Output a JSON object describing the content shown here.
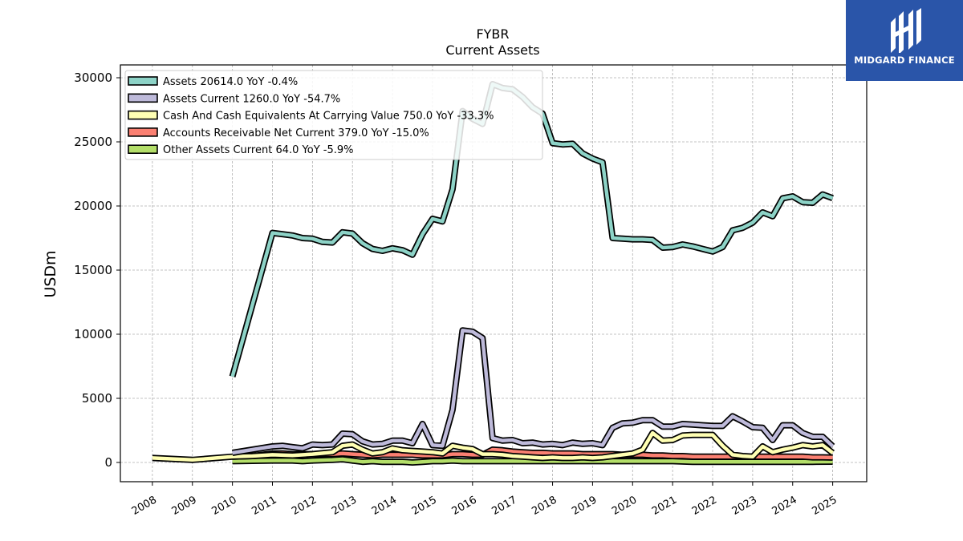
{
  "brand": {
    "name": "MIDGARD FINANCE",
    "icon": "midgard-logo-icon",
    "background": "#2a55a9"
  },
  "chart_data": {
    "type": "line",
    "title": "FYBR",
    "subtitle": "Current  Assets",
    "ylabel": "USDm",
    "xlabel": "",
    "ylim": [
      -1500,
      31000
    ],
    "xlim": [
      2007.2,
      2025.85
    ],
    "yticks": [
      0,
      5000,
      10000,
      15000,
      20000,
      25000,
      30000
    ],
    "xticks": [
      2008,
      2009,
      2010,
      2011,
      2012,
      2013,
      2014,
      2015,
      2016,
      2017,
      2018,
      2019,
      2020,
      2021,
      2022,
      2023,
      2024,
      2025
    ],
    "grid": true,
    "legend_position": "top-left",
    "series": [
      {
        "name": "Assets  20614.0 YoY -0.4%",
        "color": "#8dd3c7",
        "points": [
          [
            2010.0,
            6700
          ],
          [
            2011.0,
            17900
          ],
          [
            2011.25,
            17800
          ],
          [
            2011.5,
            17700
          ],
          [
            2011.75,
            17500
          ],
          [
            2012.0,
            17450
          ],
          [
            2012.25,
            17200
          ],
          [
            2012.5,
            17150
          ],
          [
            2012.75,
            17950
          ],
          [
            2013.0,
            17850
          ],
          [
            2013.25,
            17100
          ],
          [
            2013.5,
            16650
          ],
          [
            2013.75,
            16500
          ],
          [
            2014.0,
            16700
          ],
          [
            2014.25,
            16550
          ],
          [
            2014.5,
            16200
          ],
          [
            2014.75,
            17800
          ],
          [
            2015.0,
            19000
          ],
          [
            2015.25,
            18800
          ],
          [
            2015.5,
            21300
          ],
          [
            2015.75,
            27400
          ],
          [
            2016.0,
            26800
          ],
          [
            2016.25,
            26400
          ],
          [
            2016.5,
            29500
          ],
          [
            2016.75,
            29200
          ],
          [
            2017.0,
            29100
          ],
          [
            2017.25,
            28500
          ],
          [
            2017.5,
            27700
          ],
          [
            2017.75,
            27200
          ],
          [
            2018.0,
            24900
          ],
          [
            2018.25,
            24800
          ],
          [
            2018.5,
            24850
          ],
          [
            2018.75,
            24100
          ],
          [
            2019.0,
            23700
          ],
          [
            2019.25,
            23400
          ],
          [
            2019.5,
            17500
          ],
          [
            2019.75,
            17450
          ],
          [
            2020.0,
            17400
          ],
          [
            2020.25,
            17400
          ],
          [
            2020.5,
            17350
          ],
          [
            2020.75,
            16750
          ],
          [
            2021.0,
            16800
          ],
          [
            2021.25,
            17000
          ],
          [
            2021.5,
            16850
          ],
          [
            2021.75,
            16650
          ],
          [
            2022.0,
            16450
          ],
          [
            2022.25,
            16800
          ],
          [
            2022.5,
            18100
          ],
          [
            2022.75,
            18300
          ],
          [
            2023.0,
            18700
          ],
          [
            2023.25,
            19500
          ],
          [
            2023.5,
            19200
          ],
          [
            2023.75,
            20600
          ],
          [
            2024.0,
            20750
          ],
          [
            2024.25,
            20300
          ],
          [
            2024.5,
            20250
          ],
          [
            2024.75,
            20900
          ],
          [
            2025.0,
            20614
          ]
        ]
      },
      {
        "name": "Assets Current  1260.0 YoY -54.7%",
        "color": "#bebada",
        "points": [
          [
            2010.0,
            750
          ],
          [
            2010.5,
            1000
          ],
          [
            2011.0,
            1250
          ],
          [
            2011.25,
            1300
          ],
          [
            2011.5,
            1200
          ],
          [
            2011.75,
            1100
          ],
          [
            2012.0,
            1400
          ],
          [
            2012.25,
            1350
          ],
          [
            2012.5,
            1400
          ],
          [
            2012.75,
            2250
          ],
          [
            2013.0,
            2200
          ],
          [
            2013.25,
            1650
          ],
          [
            2013.5,
            1400
          ],
          [
            2013.75,
            1450
          ],
          [
            2014.0,
            1700
          ],
          [
            2014.25,
            1700
          ],
          [
            2014.5,
            1500
          ],
          [
            2014.75,
            3000
          ],
          [
            2015.0,
            1350
          ],
          [
            2015.25,
            1300
          ],
          [
            2015.5,
            4100
          ],
          [
            2015.75,
            10300
          ],
          [
            2016.0,
            10200
          ],
          [
            2016.25,
            9700
          ],
          [
            2016.5,
            1900
          ],
          [
            2016.75,
            1700
          ],
          [
            2017.0,
            1750
          ],
          [
            2017.25,
            1500
          ],
          [
            2017.5,
            1550
          ],
          [
            2017.75,
            1400
          ],
          [
            2018.0,
            1450
          ],
          [
            2018.25,
            1350
          ],
          [
            2018.5,
            1550
          ],
          [
            2018.75,
            1450
          ],
          [
            2019.0,
            1500
          ],
          [
            2019.25,
            1350
          ],
          [
            2019.5,
            2700
          ],
          [
            2019.75,
            3050
          ],
          [
            2020.0,
            3100
          ],
          [
            2020.25,
            3300
          ],
          [
            2020.5,
            3300
          ],
          [
            2020.75,
            2800
          ],
          [
            2021.0,
            2800
          ],
          [
            2021.25,
            3000
          ],
          [
            2021.5,
            2950
          ],
          [
            2021.75,
            2900
          ],
          [
            2022.0,
            2850
          ],
          [
            2022.25,
            2850
          ],
          [
            2022.5,
            3600
          ],
          [
            2022.75,
            3200
          ],
          [
            2023.0,
            2750
          ],
          [
            2023.25,
            2700
          ],
          [
            2023.5,
            1750
          ],
          [
            2023.75,
            2900
          ],
          [
            2024.0,
            2900
          ],
          [
            2024.25,
            2300
          ],
          [
            2024.5,
            2000
          ],
          [
            2024.75,
            2000
          ],
          [
            2025.0,
            1260
          ]
        ]
      },
      {
        "name": "Cash And Cash Equivalents At Carrying Value  750.0 YoY -33.3%",
        "color": "#ffffb3",
        "points": [
          [
            2008.0,
            350
          ],
          [
            2009.0,
            200
          ],
          [
            2010.0,
            450
          ],
          [
            2010.5,
            500
          ],
          [
            2011.0,
            600
          ],
          [
            2011.5,
            550
          ],
          [
            2012.0,
            650
          ],
          [
            2012.5,
            800
          ],
          [
            2012.75,
            1300
          ],
          [
            2013.0,
            1400
          ],
          [
            2013.25,
            1000
          ],
          [
            2013.5,
            700
          ],
          [
            2013.75,
            800
          ],
          [
            2014.0,
            1100
          ],
          [
            2014.25,
            950
          ],
          [
            2014.5,
            900
          ],
          [
            2014.75,
            850
          ],
          [
            2015.0,
            800
          ],
          [
            2015.25,
            700
          ],
          [
            2015.5,
            1300
          ],
          [
            2015.75,
            1150
          ],
          [
            2016.0,
            1050
          ],
          [
            2016.25,
            650
          ],
          [
            2016.5,
            650
          ],
          [
            2016.75,
            600
          ],
          [
            2017.0,
            500
          ],
          [
            2017.25,
            450
          ],
          [
            2017.5,
            400
          ],
          [
            2017.75,
            350
          ],
          [
            2018.0,
            400
          ],
          [
            2018.25,
            350
          ],
          [
            2018.5,
            350
          ],
          [
            2018.75,
            400
          ],
          [
            2019.0,
            350
          ],
          [
            2019.25,
            400
          ],
          [
            2019.5,
            500
          ],
          [
            2019.75,
            600
          ],
          [
            2020.0,
            700
          ],
          [
            2020.25,
            1000
          ],
          [
            2020.5,
            2300
          ],
          [
            2020.75,
            1700
          ],
          [
            2021.0,
            1750
          ],
          [
            2021.25,
            2100
          ],
          [
            2021.5,
            2150
          ],
          [
            2021.75,
            2150
          ],
          [
            2022.0,
            2150
          ],
          [
            2022.25,
            1300
          ],
          [
            2022.5,
            600
          ],
          [
            2022.75,
            500
          ],
          [
            2023.0,
            450
          ],
          [
            2023.25,
            1250
          ],
          [
            2023.5,
            800
          ],
          [
            2023.75,
            1000
          ],
          [
            2024.0,
            1150
          ],
          [
            2024.25,
            1350
          ],
          [
            2024.5,
            1250
          ],
          [
            2024.75,
            1350
          ],
          [
            2025.0,
            750
          ]
        ]
      },
      {
        "name": "Accounts Receivable Net Current  379.0 YoY -15.0%",
        "color": "#fb8072",
        "points": [
          [
            2010.0,
            450
          ],
          [
            2010.5,
            500
          ],
          [
            2011.0,
            700
          ],
          [
            2011.25,
            700
          ],
          [
            2011.5,
            650
          ],
          [
            2011.75,
            650
          ],
          [
            2012.0,
            650
          ],
          [
            2012.5,
            650
          ],
          [
            2012.75,
            700
          ],
          [
            2013.0,
            650
          ],
          [
            2013.25,
            600
          ],
          [
            2013.5,
            550
          ],
          [
            2013.75,
            600
          ],
          [
            2014.0,
            600
          ],
          [
            2014.25,
            600
          ],
          [
            2014.5,
            600
          ],
          [
            2014.75,
            550
          ],
          [
            2015.0,
            550
          ],
          [
            2015.25,
            550
          ],
          [
            2015.5,
            650
          ],
          [
            2015.75,
            650
          ],
          [
            2016.0,
            600
          ],
          [
            2016.25,
            600
          ],
          [
            2016.5,
            1000
          ],
          [
            2016.75,
            950
          ],
          [
            2017.0,
            850
          ],
          [
            2017.25,
            800
          ],
          [
            2017.5,
            750
          ],
          [
            2017.75,
            750
          ],
          [
            2018.0,
            700
          ],
          [
            2018.25,
            700
          ],
          [
            2018.5,
            700
          ],
          [
            2018.75,
            650
          ],
          [
            2019.0,
            650
          ],
          [
            2019.25,
            650
          ],
          [
            2019.5,
            650
          ],
          [
            2019.75,
            600
          ],
          [
            2020.0,
            600
          ],
          [
            2020.25,
            600
          ],
          [
            2020.5,
            550
          ],
          [
            2020.75,
            550
          ],
          [
            2021.0,
            500
          ],
          [
            2021.25,
            500
          ],
          [
            2021.5,
            450
          ],
          [
            2021.75,
            450
          ],
          [
            2022.0,
            450
          ],
          [
            2022.25,
            450
          ],
          [
            2022.5,
            450
          ],
          [
            2022.75,
            450
          ],
          [
            2023.0,
            450
          ],
          [
            2023.25,
            450
          ],
          [
            2023.5,
            450
          ],
          [
            2023.75,
            450
          ],
          [
            2024.0,
            450
          ],
          [
            2024.25,
            450
          ],
          [
            2024.5,
            400
          ],
          [
            2024.75,
            400
          ],
          [
            2025.0,
            379
          ]
        ]
      },
      {
        "name": "Other Assets Current  64.0 YoY -5.9%",
        "color": "#b3de69",
        "points": [
          [
            2010.0,
            100
          ],
          [
            2011.0,
            150
          ],
          [
            2011.5,
            150
          ],
          [
            2011.75,
            100
          ],
          [
            2012.0,
            150
          ],
          [
            2012.5,
            200
          ],
          [
            2012.75,
            250
          ],
          [
            2013.0,
            150
          ],
          [
            2013.25,
            50
          ],
          [
            2013.5,
            100
          ],
          [
            2013.75,
            50
          ],
          [
            2014.0,
            50
          ],
          [
            2014.25,
            50
          ],
          [
            2014.5,
            0
          ],
          [
            2014.75,
            50
          ],
          [
            2015.0,
            100
          ],
          [
            2015.25,
            100
          ],
          [
            2015.5,
            150
          ],
          [
            2015.75,
            100
          ],
          [
            2016.0,
            100
          ],
          [
            2016.5,
            100
          ],
          [
            2017.0,
            100
          ],
          [
            2017.5,
            100
          ],
          [
            2018.0,
            100
          ],
          [
            2018.5,
            100
          ],
          [
            2019.0,
            100
          ],
          [
            2019.5,
            100
          ],
          [
            2020.0,
            100
          ],
          [
            2020.5,
            100
          ],
          [
            2021.0,
            100
          ],
          [
            2021.5,
            50
          ],
          [
            2022.0,
            50
          ],
          [
            2022.5,
            50
          ],
          [
            2023.0,
            50
          ],
          [
            2023.5,
            50
          ],
          [
            2024.0,
            50
          ],
          [
            2024.5,
            50
          ],
          [
            2025.0,
            64
          ]
        ]
      }
    ]
  }
}
